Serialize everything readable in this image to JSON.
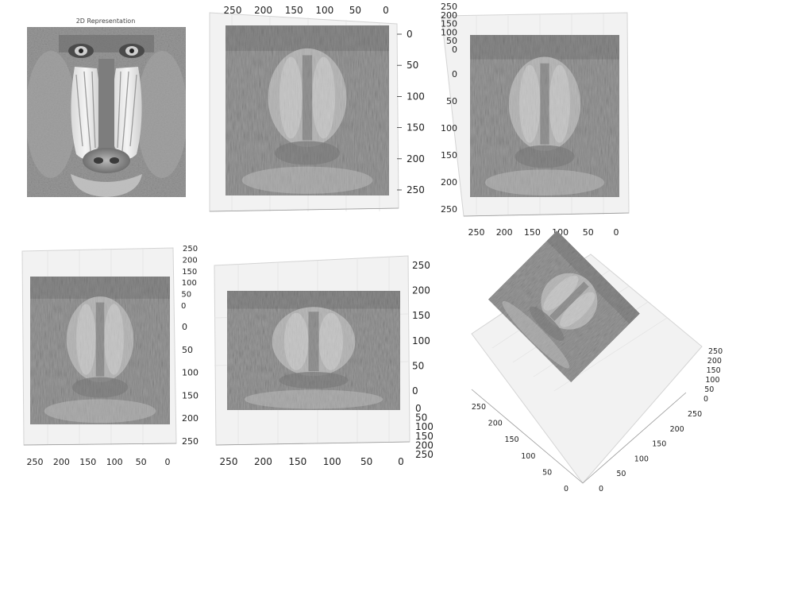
{
  "chart_data": [
    {
      "type": "heatmap",
      "panel": "2d",
      "title": "2D Representation",
      "subject": "grayscale mandrill face image",
      "colormap": "gray"
    },
    {
      "type": "surface",
      "view": "top-down",
      "colormap": "gray",
      "x_ticks": [
        "250",
        "200",
        "150",
        "100",
        "50",
        "0"
      ],
      "y_ticks": [
        "0",
        "50",
        "100",
        "150",
        "200",
        "250"
      ]
    },
    {
      "type": "surface",
      "view": "front-elevated",
      "colormap": "gray",
      "x_ticks": [
        "250",
        "200",
        "150",
        "100",
        "50",
        "0"
      ],
      "y_ticks": [
        "0",
        "50",
        "100",
        "150",
        "200",
        "250"
      ],
      "z_ticks": [
        "0",
        "50",
        "100",
        "150",
        "200",
        "250"
      ]
    },
    {
      "type": "surface",
      "view": "front-elevated",
      "colormap": "gray",
      "x_ticks": [
        "250",
        "200",
        "150",
        "100",
        "50",
        "0"
      ],
      "y_ticks": [
        "0",
        "50",
        "100",
        "150",
        "200",
        "250"
      ],
      "z_ticks": [
        "0",
        "50",
        "100",
        "150",
        "200",
        "250"
      ]
    },
    {
      "type": "surface",
      "view": "front-low",
      "colormap": "gray",
      "x_ticks": [
        "250",
        "200",
        "150",
        "100",
        "50",
        "0"
      ],
      "y_ticks": [
        "0",
        "50",
        "100",
        "150",
        "200",
        "250"
      ],
      "z_ticks": [
        "0",
        "50",
        "100",
        "150",
        "200",
        "250"
      ]
    },
    {
      "type": "surface",
      "view": "isometric",
      "colormap": "gray",
      "x_ticks": [
        "0",
        "50",
        "100",
        "150",
        "200",
        "250"
      ],
      "y_ticks": [
        "250",
        "200",
        "150",
        "100",
        "50",
        "0"
      ],
      "z_ticks": [
        "0",
        "50",
        "100",
        "150",
        "200",
        "250"
      ]
    }
  ]
}
